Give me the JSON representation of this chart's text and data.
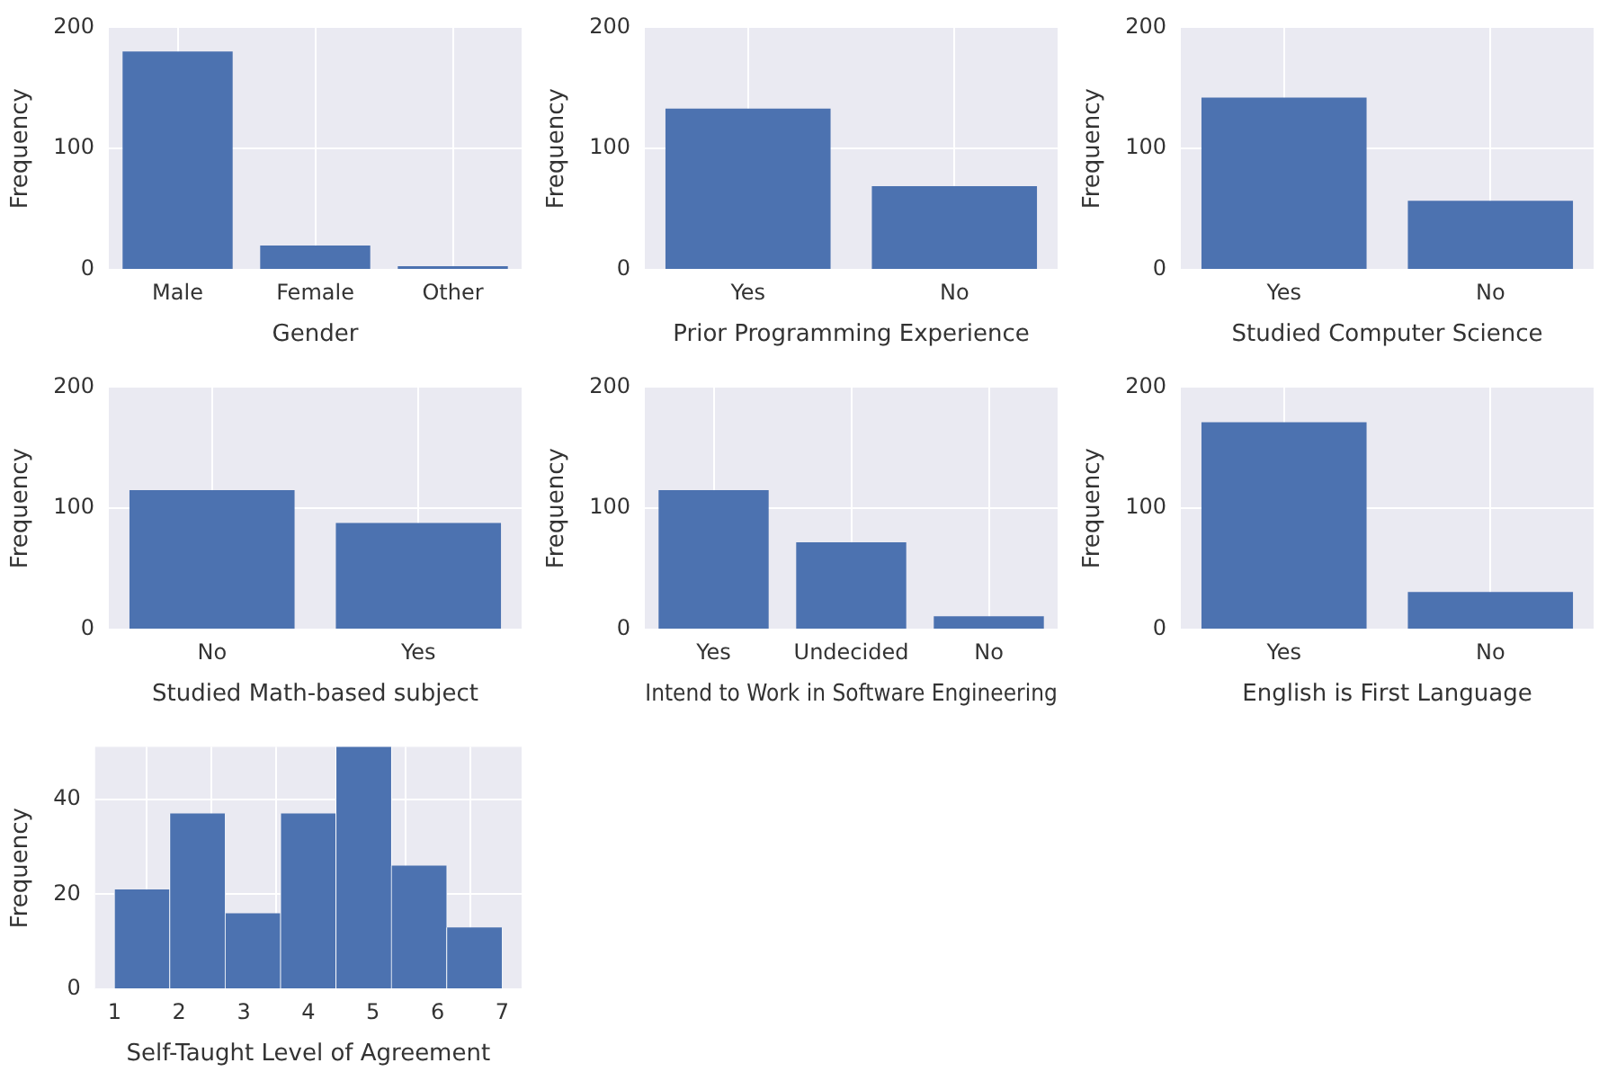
{
  "chart_data": [
    {
      "type": "bar",
      "categories": [
        "Male",
        "Female",
        "Other"
      ],
      "values": [
        180,
        20,
        3
      ],
      "color": "#4c72b0",
      "xlabel": "Gender",
      "ylabel": "Frequency",
      "ylim": [
        0,
        200
      ],
      "yticks": [
        0,
        100,
        200
      ],
      "grid": true
    },
    {
      "type": "bar",
      "categories": [
        "Yes",
        "No"
      ],
      "values": [
        133,
        69
      ],
      "color": "#4c72b0",
      "xlabel": "Prior Programming Experience",
      "ylabel": "Frequency",
      "ylim": [
        0,
        200
      ],
      "yticks": [
        0,
        100,
        200
      ],
      "grid": true
    },
    {
      "type": "bar",
      "categories": [
        "Yes",
        "No"
      ],
      "values": [
        142,
        57
      ],
      "color": "#4c72b0",
      "xlabel": "Studied Computer Science",
      "ylabel": "Frequency",
      "ylim": [
        0,
        200
      ],
      "yticks": [
        0,
        100,
        200
      ],
      "grid": true
    },
    {
      "type": "bar",
      "categories": [
        "No",
        "Yes"
      ],
      "values": [
        115,
        88
      ],
      "color": "#4c72b0",
      "xlabel": "Studied Math-based subject",
      "ylabel": "Frequency",
      "ylim": [
        0,
        200
      ],
      "yticks": [
        0,
        100,
        200
      ],
      "grid": true
    },
    {
      "type": "bar",
      "categories": [
        "Yes",
        "Undecided",
        "No"
      ],
      "values": [
        115,
        72,
        11
      ],
      "color": "#4c72b0",
      "xlabel": "Intend to Work in Software Engineering",
      "ylabel": "Frequency",
      "ylim": [
        0,
        200
      ],
      "yticks": [
        0,
        100,
        200
      ],
      "grid": true
    },
    {
      "type": "bar",
      "categories": [
        "Yes",
        "No"
      ],
      "values": [
        171,
        31
      ],
      "color": "#4c72b0",
      "xlabel": "English is First Language",
      "ylabel": "Frequency",
      "ylim": [
        0,
        200
      ],
      "yticks": [
        0,
        100,
        200
      ],
      "grid": true
    },
    {
      "type": "histogram",
      "bins": [
        1,
        1.857,
        2.714,
        3.571,
        4.429,
        5.286,
        6.143,
        7
      ],
      "values": [
        21,
        37,
        16,
        37,
        51,
        26,
        13
      ],
      "color": "#4c72b0",
      "xlabel": "Self-Taught Level of Agreement",
      "ylabel": "Frequency",
      "xlim": [
        0.7,
        7.3
      ],
      "xticks": [
        1,
        2,
        3,
        4,
        5,
        6,
        7
      ],
      "ylim": [
        0,
        51
      ],
      "yticks": [
        0,
        20,
        40
      ],
      "grid": true
    }
  ]
}
